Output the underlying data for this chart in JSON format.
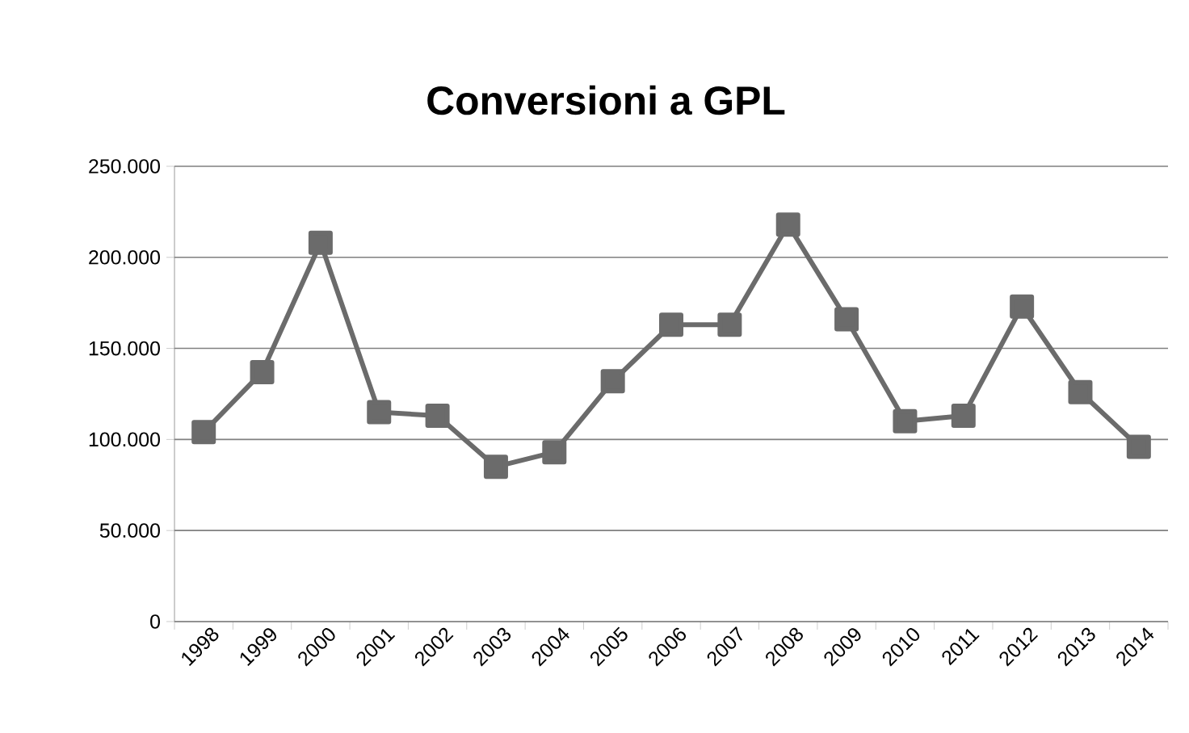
{
  "chart_data": {
    "type": "line",
    "title": "Conversioni a GPL",
    "categories": [
      "1998",
      "1999",
      "2000",
      "2001",
      "2002",
      "2003",
      "2004",
      "2005",
      "2006",
      "2007",
      "2008",
      "2009",
      "2010",
      "2011",
      "2012",
      "2013",
      "2014"
    ],
    "series": [
      {
        "color": "#6b6b6b",
        "values": [
          104000,
          137000,
          208000,
          115000,
          113000,
          85000,
          93000,
          132000,
          163000,
          163000,
          218000,
          166000,
          110000,
          113000,
          173000,
          126000,
          96000
        ]
      }
    ],
    "ylim": [
      0,
      250000
    ],
    "yticks": [
      {
        "value": 0,
        "label": "0"
      },
      {
        "value": 50000,
        "label": "50.000"
      },
      {
        "value": 100000,
        "label": "100.000"
      },
      {
        "value": 150000,
        "label": "150.000"
      },
      {
        "value": 200000,
        "label": "200.000"
      },
      {
        "value": 250000,
        "label": "250.000"
      }
    ],
    "grid": "y",
    "marker": "square",
    "line_style": "solid"
  }
}
